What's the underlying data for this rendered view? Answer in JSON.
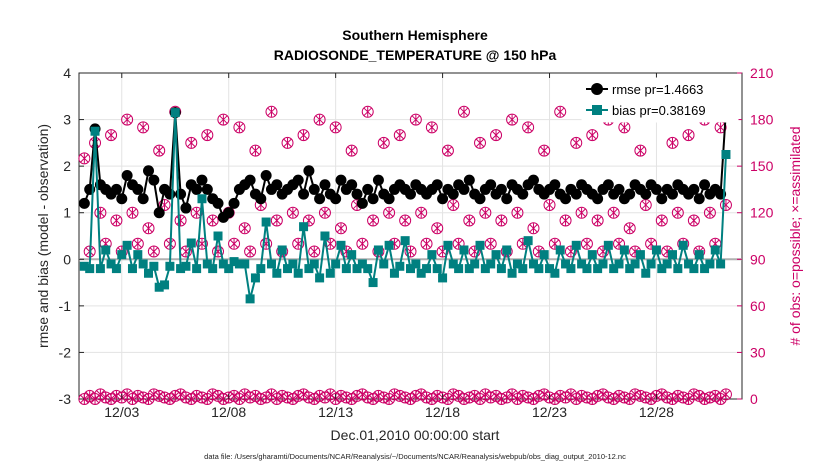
{
  "chart_data": {
    "type": "line",
    "title": "Southern Hemisphere",
    "subtitle": "RADIOSONDE_TEMPERATURE @ 150 hPa",
    "xlabel": "Dec.01,2010 00:00:00 start",
    "ylabel": "rmse and bias (model - observation)",
    "ylabel_right": "# of obs: o=possible; ×=assimilated",
    "footnote": "data file: /Users/gharamti/Documents/NCAR/Reanalysis/~/Documents/NCAR/Reanalysis/webpub/obs_diag_output_2010-12.nc",
    "xlim": [
      1,
      32
    ],
    "ylim": [
      -3,
      4
    ],
    "ylim_right": [
      0,
      210
    ],
    "x_ticks": [
      3,
      8,
      13,
      18,
      23,
      28
    ],
    "x_tick_labels": [
      "12/03",
      "12/08",
      "12/13",
      "12/18",
      "12/23",
      "12/28"
    ],
    "y_ticks": [
      -3,
      -2,
      -1,
      0,
      1,
      2,
      3,
      4
    ],
    "y_ticks_right": [
      0,
      30,
      60,
      90,
      120,
      150,
      180,
      210
    ],
    "legend": [
      "rmse pr=1.4663",
      "bias pr=0.38169"
    ],
    "legend_position": "top-right",
    "grid": true,
    "colors": {
      "rmse": "#000000",
      "bias": "#008080",
      "obs": "#cc0066",
      "zero_line": "#b0b0b0"
    },
    "x_start": 1.25,
    "x_step": 0.25,
    "rmse": [
      1.2,
      1.5,
      2.8,
      1.6,
      1.5,
      1.4,
      1.5,
      1.3,
      1.8,
      1.6,
      1.5,
      1.3,
      1.9,
      1.7,
      1.0,
      1.5,
      1.4,
      3.15,
      1.4,
      1.1,
      1.6,
      1.5,
      1.7,
      1.5,
      1.3,
      1.2,
      0.9,
      1.0,
      1.2,
      1.5,
      1.6,
      1.7,
      1.4,
      1.3,
      1.8,
      1.5,
      1.6,
      1.4,
      1.5,
      1.6,
      1.7,
      1.4,
      1.9,
      1.5,
      1.3,
      1.6,
      1.4,
      1.3,
      1.7,
      1.5,
      1.6,
      1.4,
      1.2,
      1.5,
      1.3,
      1.7,
      1.4,
      1.3,
      1.5,
      1.6,
      1.5,
      1.4,
      1.6,
      1.5,
      1.4,
      1.5,
      1.6,
      1.3,
      1.5,
      1.4,
      1.6,
      1.5,
      1.7,
      1.4,
      1.3,
      1.5,
      1.6,
      1.4,
      1.5,
      1.3,
      1.6,
      1.5,
      1.4,
      1.6,
      1.7,
      1.5,
      1.4,
      1.5,
      1.6,
      1.4,
      1.3,
      1.5,
      1.4,
      1.6,
      1.5,
      1.4,
      1.3,
      1.5,
      1.6,
      1.4,
      1.5,
      1.3,
      1.4,
      1.6,
      1.5,
      1.4,
      1.6,
      1.5,
      1.3,
      1.5,
      1.4,
      1.6,
      1.5,
      1.4,
      1.5,
      1.3,
      1.6,
      1.4,
      1.5,
      1.4,
      3.2
    ],
    "bias": [
      -0.15,
      -0.2,
      2.75,
      -0.2,
      0.2,
      -0.1,
      -0.2,
      0.1,
      0.3,
      -0.2,
      0.1,
      -0.1,
      -0.3,
      -0.15,
      -0.6,
      -0.55,
      -0.15,
      3.15,
      -0.2,
      -0.15,
      0.35,
      -0.2,
      1.3,
      -0.1,
      -0.2,
      0.5,
      -0.1,
      -0.2,
      -0.05,
      -0.1,
      -0.1,
      -0.85,
      -0.4,
      -0.2,
      0.8,
      -0.1,
      -0.3,
      0.2,
      -0.2,
      -0.1,
      -0.3,
      0.7,
      -0.2,
      -0.1,
      -0.4,
      0.5,
      -0.3,
      -0.1,
      0.3,
      -0.2,
      0.1,
      -0.2,
      -0.1,
      -0.2,
      -0.5,
      0.2,
      -0.1,
      0.3,
      -0.3,
      -0.15,
      0.4,
      -0.2,
      -0.1,
      -0.3,
      -0.2,
      0.1,
      -0.2,
      -0.4,
      0.3,
      -0.1,
      -0.2,
      0.2,
      -0.2,
      -0.1,
      0.3,
      -0.2,
      -0.1,
      0.1,
      -0.2,
      0.2,
      -0.3,
      -0.1,
      -0.2,
      0.4,
      -0.1,
      -0.2,
      0.1,
      -0.2,
      -0.3,
      0.2,
      -0.1,
      -0.2,
      0.3,
      -0.1,
      -0.2,
      0.1,
      -0.2,
      -0.1,
      0.3,
      -0.2,
      -0.1,
      0.2,
      -0.2,
      -0.1,
      0.1,
      -0.3,
      -0.1,
      0.2,
      -0.2,
      -0.1,
      0.1,
      -0.2,
      0.3,
      -0.1,
      -0.2,
      0.1,
      -0.2,
      -0.1,
      0.2,
      -0.1,
      2.25
    ],
    "obs_possible": [
      155,
      95,
      165,
      120,
      100,
      170,
      115,
      95,
      180,
      120,
      100,
      175,
      110,
      95,
      160,
      125,
      100,
      185,
      115,
      95,
      165,
      120,
      100,
      170,
      115,
      95,
      180,
      120,
      100,
      175,
      110,
      95,
      160,
      125,
      100,
      185,
      115,
      95,
      165,
      120,
      100,
      170,
      115,
      95,
      180,
      120,
      100,
      175,
      110,
      95,
      160,
      125,
      100,
      185,
      115,
      95,
      165,
      120,
      100,
      170,
      115,
      95,
      180,
      120,
      100,
      175,
      110,
      95,
      160,
      125,
      100,
      185,
      115,
      95,
      165,
      120,
      100,
      170,
      115,
      95,
      180,
      120,
      100,
      175,
      110,
      95,
      160,
      125,
      100,
      185,
      115,
      95,
      165,
      120,
      100,
      170,
      115,
      95,
      180,
      120,
      100,
      175,
      110,
      95,
      160,
      125,
      100,
      185,
      115,
      95,
      165,
      120,
      100,
      170,
      115,
      95,
      180,
      120,
      100,
      175,
      125
    ],
    "obs_assimilated": [
      155,
      95,
      165,
      120,
      100,
      170,
      115,
      95,
      180,
      120,
      100,
      175,
      110,
      95,
      160,
      125,
      100,
      185,
      115,
      95,
      165,
      120,
      100,
      170,
      115,
      95,
      180,
      120,
      100,
      175,
      110,
      95,
      160,
      125,
      100,
      185,
      115,
      95,
      165,
      120,
      100,
      170,
      115,
      95,
      180,
      120,
      100,
      175,
      110,
      95,
      160,
      125,
      100,
      185,
      115,
      95,
      165,
      120,
      100,
      170,
      115,
      95,
      180,
      120,
      100,
      175,
      110,
      95,
      160,
      125,
      100,
      185,
      115,
      95,
      165,
      120,
      100,
      170,
      115,
      95,
      180,
      120,
      100,
      175,
      110,
      95,
      160,
      125,
      100,
      185,
      115,
      95,
      165,
      120,
      100,
      170,
      115,
      95,
      180,
      120,
      100,
      175,
      110,
      95,
      160,
      125,
      100,
      185,
      115,
      95,
      165,
      120,
      100,
      170,
      115,
      95,
      180,
      120,
      100,
      175,
      125
    ],
    "obs_bottom": [
      0,
      2,
      0,
      3,
      1,
      0,
      2,
      1,
      3,
      0,
      2,
      1,
      0,
      3,
      2,
      1,
      0,
      2,
      3,
      1,
      0,
      2,
      1,
      0,
      3,
      2,
      0,
      1,
      2,
      0,
      3,
      1,
      2,
      0,
      1,
      3,
      0,
      2,
      1,
      0,
      2,
      3,
      1,
      0,
      2,
      1,
      3,
      0,
      2,
      1,
      0,
      2,
      3,
      1,
      0,
      2,
      1,
      0,
      3,
      2,
      1,
      0,
      2,
      3,
      1,
      0,
      2,
      1,
      0,
      3,
      2,
      0,
      1,
      2,
      0,
      3,
      1,
      2,
      0,
      1,
      3,
      0,
      2,
      1,
      0,
      2,
      3,
      1,
      0,
      2,
      1,
      3,
      0,
      2,
      1,
      0,
      2,
      3,
      1,
      0,
      2,
      1,
      0,
      3,
      2,
      1,
      0,
      2,
      3,
      1,
      0,
      2,
      1,
      0,
      3,
      2,
      0,
      1,
      2,
      0,
      3
    ]
  }
}
